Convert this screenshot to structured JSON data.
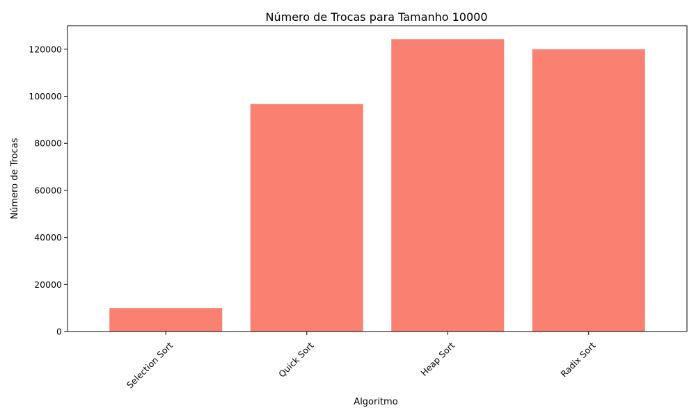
{
  "chart_data": {
    "type": "bar",
    "title": "Número de Trocas para Tamanho 10000",
    "xlabel": "Algoritmo",
    "ylabel": "Número de Trocas",
    "categories": [
      "Selection Sort",
      "Quick Sort",
      "Heap Sort",
      "Radix Sort"
    ],
    "values": [
      9999,
      96700,
      124300,
      120000
    ],
    "ylim": [
      0,
      130000
    ],
    "yticks": [
      0,
      20000,
      40000,
      60000,
      80000,
      100000,
      120000
    ],
    "ytick_labels": [
      "0",
      "20000",
      "40000",
      "60000",
      "80000",
      "100000",
      "120000"
    ],
    "bar_color": "#fa8072",
    "grid": false,
    "legend": "none"
  }
}
